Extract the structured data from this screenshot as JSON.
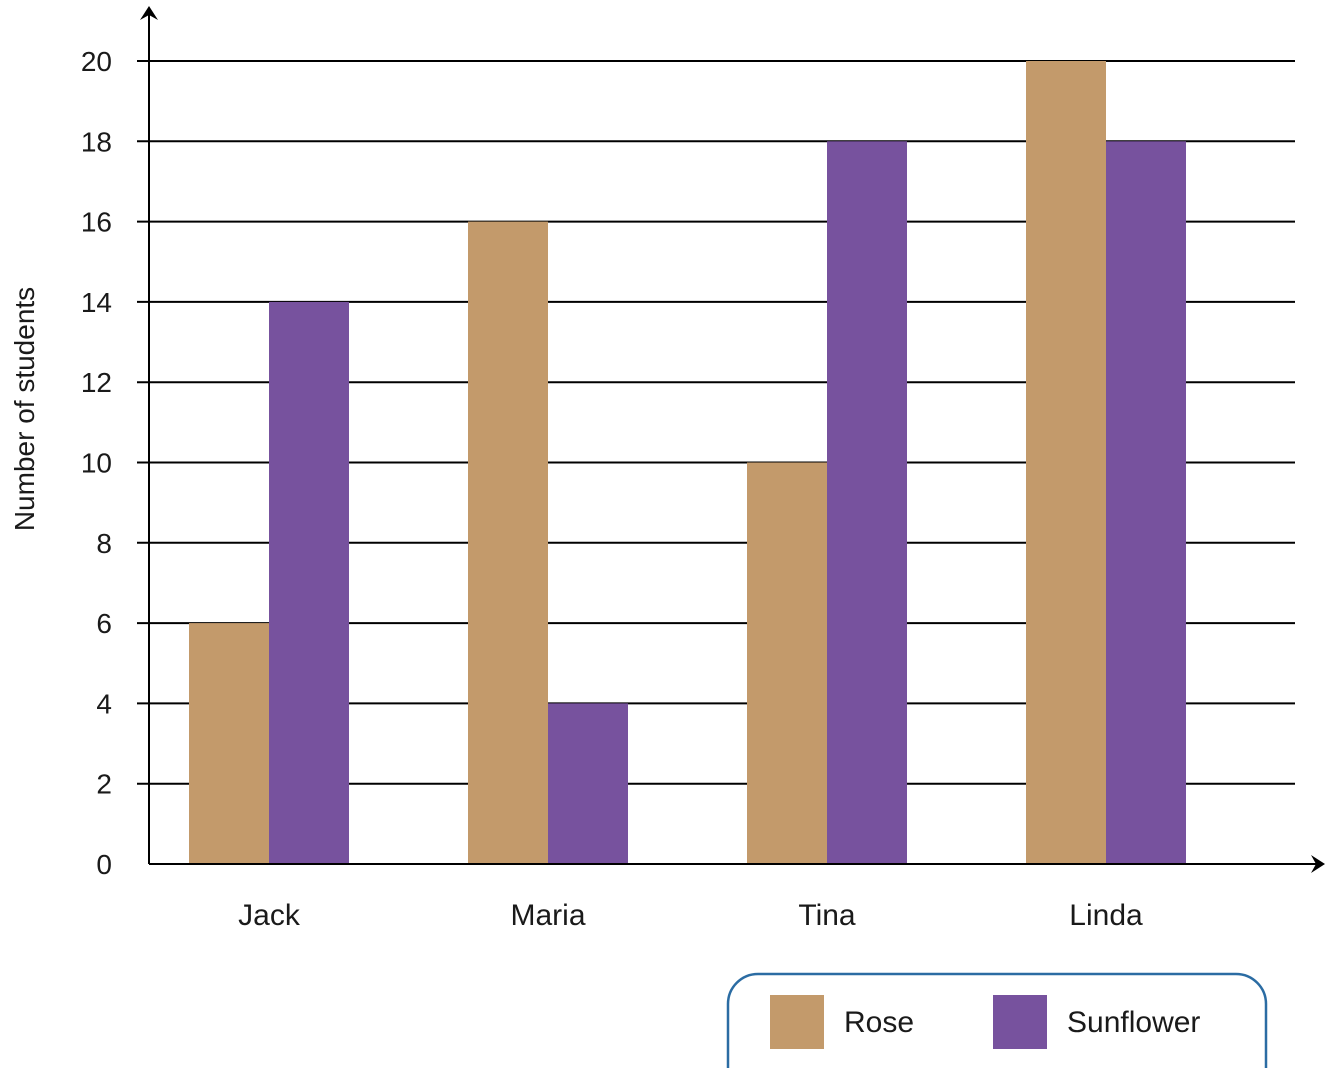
{
  "chart_data": {
    "type": "bar",
    "title": "",
    "xlabel": "",
    "ylabel": "Number of students",
    "categories": [
      "Jack",
      "Maria",
      "Tina",
      "Linda"
    ],
    "series": [
      {
        "name": "Rose",
        "values": [
          6,
          16,
          10,
          20
        ],
        "color": "#c39a6b"
      },
      {
        "name": "Sunflower",
        "values": [
          14,
          4,
          18,
          18
        ],
        "color": "#77529e"
      }
    ],
    "ylim": [
      0,
      20
    ],
    "yticks": [
      "0",
      "2",
      "4",
      "6",
      "8",
      "10",
      "12",
      "14",
      "16",
      "18",
      "20"
    ],
    "grid": "horizontal",
    "legend": {
      "position": "bottom-right",
      "border_color": "#2b6ca3"
    },
    "axis_color": "#000000"
  }
}
